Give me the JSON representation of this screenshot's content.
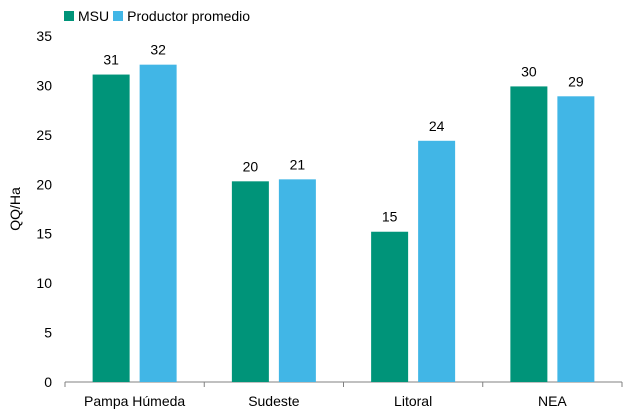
{
  "chart_data": {
    "type": "bar",
    "categories": [
      "Pampa Húmeda",
      "Sudeste",
      "Litoral",
      "NEA"
    ],
    "series": [
      {
        "name": "MSU",
        "values": [
          31.1,
          20.3,
          15.2,
          29.9
        ],
        "labels": [
          "31",
          "20",
          "15",
          "30"
        ],
        "color": "#009479"
      },
      {
        "name": "Productor promedio",
        "values": [
          32.1,
          20.5,
          24.4,
          28.9
        ],
        "labels": [
          "32",
          "21",
          "24",
          "29"
        ],
        "color": "#41B6E6"
      }
    ],
    "xlabel": "",
    "ylabel": "QQ/Ha",
    "ylim": [
      0,
      35
    ],
    "yticks": [
      0,
      5,
      10,
      15,
      20,
      25,
      30,
      35
    ],
    "grid": false,
    "legend": "top-left"
  }
}
